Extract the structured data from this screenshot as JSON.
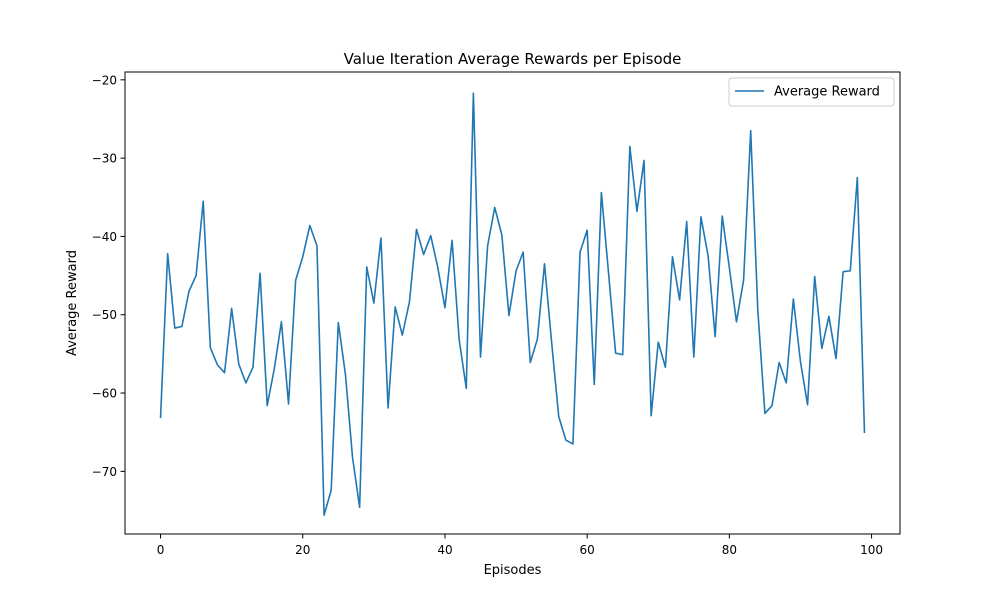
{
  "chart_data": {
    "type": "line",
    "title": "Value Iteration Average Rewards per Episode",
    "xlabel": "Episodes",
    "ylabel": "Average Reward",
    "xlim": [
      -5,
      104
    ],
    "ylim": [
      -78,
      -19
    ],
    "x_ticks": [
      0,
      20,
      40,
      60,
      80,
      100
    ],
    "y_ticks": [
      -70,
      -60,
      -50,
      -40,
      -30,
      -20
    ],
    "grid": false,
    "legend": "top-right",
    "series": [
      {
        "name": "Average Reward",
        "color": "#1f77b4",
        "x": [
          0,
          1,
          2,
          3,
          4,
          5,
          6,
          7,
          8,
          9,
          10,
          11,
          12,
          13,
          14,
          15,
          16,
          17,
          18,
          19,
          20,
          21,
          22,
          23,
          24,
          25,
          26,
          27,
          28,
          29,
          30,
          31,
          32,
          33,
          34,
          35,
          36,
          37,
          38,
          39,
          40,
          41,
          42,
          43,
          44,
          45,
          46,
          47,
          48,
          49,
          50,
          51,
          52,
          53,
          54,
          55,
          56,
          57,
          58,
          59,
          60,
          61,
          62,
          63,
          64,
          65,
          66,
          67,
          68,
          69,
          70,
          71,
          72,
          73,
          74,
          75,
          76,
          77,
          78,
          79,
          80,
          81,
          82,
          83,
          84,
          85,
          86,
          87,
          88,
          89,
          90,
          91,
          92,
          93,
          94,
          95,
          96,
          97,
          98,
          99
        ],
        "values": [
          -63.1,
          -42.2,
          -51.7,
          -51.5,
          -47.0,
          -45.0,
          -35.5,
          -54.2,
          -56.4,
          -57.4,
          -49.2,
          -56.3,
          -58.7,
          -56.7,
          -44.7,
          -61.6,
          -56.9,
          -50.9,
          -61.4,
          -45.6,
          -42.6,
          -38.6,
          -41.2,
          -75.6,
          -72.4,
          -51.0,
          -57.6,
          -68.2,
          -74.6,
          -43.9,
          -48.5,
          -40.2,
          -61.9,
          -49.0,
          -52.6,
          -48.4,
          -39.1,
          -42.3,
          -39.9,
          -44.0,
          -49.1,
          -40.5,
          -53.2,
          -59.4,
          -21.7,
          -55.4,
          -41.2,
          -36.3,
          -39.8,
          -50.1,
          -44.4,
          -42.0,
          -56.1,
          -53.1,
          -43.5,
          -53.5,
          -63.0,
          -66.0,
          -66.5,
          -42.0,
          -39.2,
          -58.9,
          -34.4,
          -44.6,
          -54.9,
          -55.1,
          -28.5,
          -36.8,
          -30.3,
          -62.9,
          -53.5,
          -56.7,
          -42.6,
          -48.1,
          -38.1,
          -55.4,
          -37.5,
          -42.4,
          -52.8,
          -37.4,
          -44.0,
          -50.9,
          -45.6,
          -26.5,
          -49.4,
          -62.6,
          -61.6,
          -56.1,
          -58.7,
          -48.0,
          -56.0,
          -61.5,
          -45.1,
          -54.3,
          -50.2,
          -55.6,
          -44.5,
          -44.4,
          -32.5,
          -65.0
        ]
      }
    ]
  }
}
